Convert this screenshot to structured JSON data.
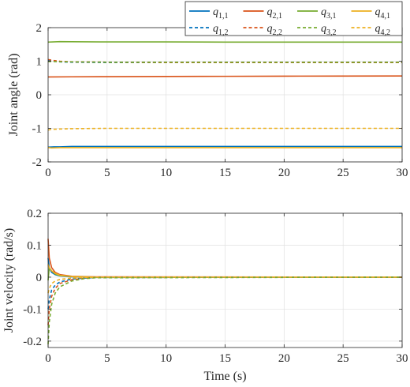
{
  "figure": {
    "legend": {
      "placement": "top-right, above top panel",
      "columns": 4,
      "entries": [
        {
          "series": "q11",
          "sym": "q",
          "sub": "1,1"
        },
        {
          "series": "q21",
          "sym": "q",
          "sub": "2,1"
        },
        {
          "series": "q31",
          "sym": "q",
          "sub": "3,1"
        },
        {
          "series": "q41",
          "sym": "q",
          "sub": "4,1"
        },
        {
          "series": "q12",
          "sym": "q",
          "sub": "1,2"
        },
        {
          "series": "q22",
          "sym": "q",
          "sub": "2,2"
        },
        {
          "series": "q32",
          "sym": "q",
          "sub": "3,2"
        },
        {
          "series": "q42",
          "sym": "q",
          "sub": "4,2"
        }
      ]
    }
  },
  "chart_data": [
    {
      "type": "line",
      "xlabel": "",
      "ylabel": "Joint angle (rad)",
      "xlim": [
        0,
        30
      ],
      "ylim": [
        -2,
        2
      ],
      "xticks": [
        0,
        5,
        10,
        15,
        20,
        25,
        30
      ],
      "xtick_labels": [
        "0",
        "5",
        "10",
        "15",
        "20",
        "25",
        "30"
      ],
      "yticks": [
        -2,
        -1,
        0,
        1,
        2
      ],
      "ytick_labels": [
        "-2",
        "-1",
        "0",
        "1",
        "2"
      ],
      "grid": true,
      "series": [
        {
          "key": "q11",
          "color": "#0072BD",
          "style": "solid",
          "x": [
            0,
            0.5,
            1,
            2,
            5,
            10,
            30
          ],
          "y": [
            -1.56,
            -1.55,
            -1.55,
            -1.54,
            -1.54,
            -1.54,
            -1.54
          ]
        },
        {
          "key": "q21",
          "color": "#D95319",
          "style": "solid",
          "x": [
            0,
            2,
            5,
            10,
            15,
            20,
            25,
            30
          ],
          "y": [
            0.53,
            0.535,
            0.54,
            0.545,
            0.55,
            0.555,
            0.558,
            0.56
          ]
        },
        {
          "key": "q31",
          "color": "#77AC30",
          "style": "solid",
          "x": [
            0,
            1,
            2,
            5,
            10,
            15,
            20,
            25,
            30
          ],
          "y": [
            1.57,
            1.585,
            1.58,
            1.575,
            1.575,
            1.57,
            1.57,
            1.57,
            1.57
          ]
        },
        {
          "key": "q41",
          "color": "#EDB120",
          "style": "solid",
          "x": [
            0,
            0.3,
            1,
            2,
            5,
            10,
            30
          ],
          "y": [
            -1.57,
            -1.585,
            -1.575,
            -1.575,
            -1.575,
            -1.575,
            -1.575
          ]
        },
        {
          "key": "q12",
          "color": "#0072BD",
          "style": "dashed",
          "x": [
            0,
            0.5,
            1,
            2,
            5,
            10,
            30
          ],
          "y": [
            1.02,
            1.0,
            0.98,
            0.97,
            0.96,
            0.96,
            0.96
          ]
        },
        {
          "key": "q22",
          "color": "#D95319",
          "style": "dashed",
          "x": [
            0,
            0.5,
            1,
            2,
            5,
            10,
            30
          ],
          "y": [
            1.05,
            1.02,
            1.0,
            0.98,
            0.97,
            0.96,
            0.96
          ]
        },
        {
          "key": "q32",
          "color": "#77AC30",
          "style": "dashed",
          "x": [
            0,
            0.5,
            1,
            2,
            5,
            10,
            30
          ],
          "y": [
            0.99,
            0.99,
            0.985,
            0.98,
            0.97,
            0.97,
            0.97
          ]
        },
        {
          "key": "q42",
          "color": "#EDB120",
          "style": "dashed",
          "x": [
            0,
            0.3,
            1,
            2,
            5,
            10,
            30
          ],
          "y": [
            -1.05,
            -1.03,
            -1.02,
            -1.01,
            -1.0,
            -1.0,
            -1.0
          ]
        }
      ]
    },
    {
      "type": "line",
      "xlabel": "Time (s)",
      "ylabel": "Joint velocity (rad/s)",
      "xlim": [
        0,
        30
      ],
      "ylim": [
        -0.22,
        0.2
      ],
      "xticks": [
        0,
        5,
        10,
        15,
        20,
        25,
        30
      ],
      "xtick_labels": [
        "0",
        "5",
        "10",
        "15",
        "20",
        "25",
        "30"
      ],
      "yticks": [
        -0.2,
        -0.1,
        0,
        0.1,
        0.2
      ],
      "ytick_labels": [
        "-0.2",
        "-0.1",
        "0",
        "0.1",
        "0.2"
      ],
      "grid": true,
      "series": [
        {
          "key": "q11",
          "color": "#0072BD",
          "style": "solid",
          "x": [
            0,
            0.1,
            0.3,
            0.6,
            1,
            2,
            4,
            30
          ],
          "y": [
            0.06,
            0.03,
            0.015,
            0.008,
            0.004,
            0.001,
            0.0,
            0.0
          ]
        },
        {
          "key": "q21",
          "color": "#D95319",
          "style": "solid",
          "x": [
            0,
            0.1,
            0.3,
            0.6,
            1,
            2,
            4,
            30
          ],
          "y": [
            0.12,
            0.06,
            0.03,
            0.015,
            0.008,
            0.003,
            0.001,
            0.0
          ]
        },
        {
          "key": "q31",
          "color": "#77AC30",
          "style": "solid",
          "x": [
            0,
            0.1,
            0.3,
            0.6,
            1,
            2,
            4,
            30
          ],
          "y": [
            -0.01,
            0.03,
            0.02,
            0.01,
            0.005,
            0.002,
            0.0,
            0.0
          ]
        },
        {
          "key": "q41",
          "color": "#EDB120",
          "style": "solid",
          "x": [
            0,
            0.1,
            0.3,
            0.6,
            1,
            2,
            4,
            30
          ],
          "y": [
            0.04,
            0.03,
            0.02,
            0.012,
            0.006,
            0.002,
            0.0,
            0.0
          ]
        },
        {
          "key": "q12",
          "color": "#0072BD",
          "style": "dashed",
          "x": [
            0,
            0.1,
            0.3,
            0.6,
            1,
            2,
            3,
            4,
            30
          ],
          "y": [
            -0.1,
            -0.07,
            -0.04,
            -0.025,
            -0.015,
            -0.006,
            -0.003,
            -0.001,
            0.0
          ]
        },
        {
          "key": "q22",
          "color": "#D95319",
          "style": "dashed",
          "x": [
            0,
            0.1,
            0.3,
            0.6,
            1,
            2,
            3,
            4,
            30
          ],
          "y": [
            -0.15,
            -0.1,
            -0.06,
            -0.035,
            -0.02,
            -0.008,
            -0.004,
            -0.001,
            0.0
          ]
        },
        {
          "key": "q32",
          "color": "#77AC30",
          "style": "dashed",
          "x": [
            0,
            0.1,
            0.3,
            0.6,
            1,
            2,
            3,
            4,
            30
          ],
          "y": [
            -0.21,
            -0.14,
            -0.085,
            -0.05,
            -0.03,
            -0.012,
            -0.005,
            -0.002,
            0.0
          ]
        },
        {
          "key": "q42",
          "color": "#EDB120",
          "style": "dashed",
          "x": [
            0,
            0.1,
            0.3,
            0.6,
            1,
            2,
            3,
            4,
            30
          ],
          "y": [
            -0.05,
            -0.035,
            -0.02,
            -0.012,
            -0.007,
            -0.003,
            -0.001,
            0.0,
            0.0
          ]
        }
      ]
    }
  ]
}
